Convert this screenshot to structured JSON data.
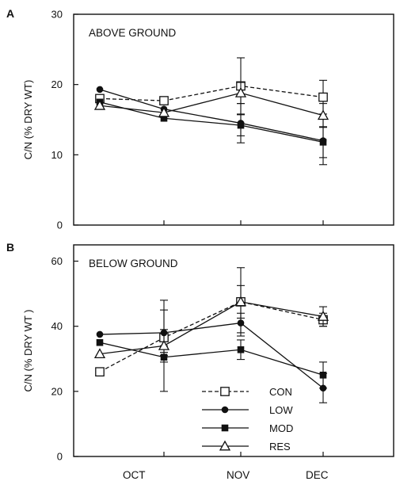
{
  "chart_data": [
    {
      "panel_letter": "A",
      "type": "line",
      "title": "ABOVE GROUND",
      "ylabel": "C/N  (%  DRY  WT)",
      "ylim": [
        0,
        30
      ],
      "yticks": [
        "0",
        "10",
        "20",
        "30"
      ],
      "categories": [
        "OCT",
        "NOV",
        "DEC"
      ],
      "x": [
        0.7,
        1.0,
        2.0,
        3.0
      ],
      "series": [
        {
          "name": "CON",
          "marker": "open-square",
          "dashed": true,
          "values": [
            18.0,
            17.7,
            19.8,
            18.2
          ],
          "err": [
            0,
            0,
            4.0,
            2.4
          ]
        },
        {
          "name": "LOW",
          "marker": "filled-circle",
          "dashed": false,
          "values": [
            19.3,
            16.5,
            14.5,
            12.0
          ],
          "err": [
            0,
            0,
            2.8,
            3.4
          ]
        },
        {
          "name": "MOD",
          "marker": "filled-square",
          "dashed": false,
          "values": [
            17.5,
            15.2,
            14.2,
            11.8
          ],
          "err": [
            0,
            0,
            1.5,
            2.2
          ]
        },
        {
          "name": "RES",
          "marker": "open-triangle",
          "dashed": false,
          "values": [
            17.0,
            16.0,
            18.8,
            15.6
          ],
          "err": [
            0,
            0,
            1.5,
            1.7
          ]
        }
      ]
    },
    {
      "panel_letter": "B",
      "type": "line",
      "title": "BELOW GROUND",
      "ylabel": "C/N  (%  DRY  WT )",
      "ylim": [
        0,
        65
      ],
      "yticks": [
        "0",
        "20",
        "40",
        "60"
      ],
      "categories": [
        "OCT",
        "NOV",
        "DEC"
      ],
      "x": [
        0.7,
        1.0,
        2.0,
        3.0
      ],
      "series": [
        {
          "name": "CON",
          "marker": "open-square",
          "dashed": true,
          "values": [
            26.0,
            36.5,
            47.5,
            42.0
          ],
          "err": [
            0,
            2.5,
            10.5,
            2.0
          ]
        },
        {
          "name": "LOW",
          "marker": "filled-circle",
          "dashed": false,
          "values": [
            37.5,
            38.0,
            41.0,
            21.0
          ],
          "err": [
            0,
            7.0,
            3.0,
            4.5
          ]
        },
        {
          "name": "MOD",
          "marker": "filled-square",
          "dashed": false,
          "values": [
            35.0,
            30.5,
            32.8,
            25.0
          ],
          "err": [
            0,
            1.5,
            3.0,
            4.0
          ]
        },
        {
          "name": "RES",
          "marker": "open-triangle",
          "dashed": false,
          "values": [
            31.5,
            34.0,
            47.5,
            43.0
          ],
          "err": [
            0,
            14.0,
            5.0,
            3.0
          ]
        }
      ],
      "legend_position": "bottom-center"
    }
  ]
}
